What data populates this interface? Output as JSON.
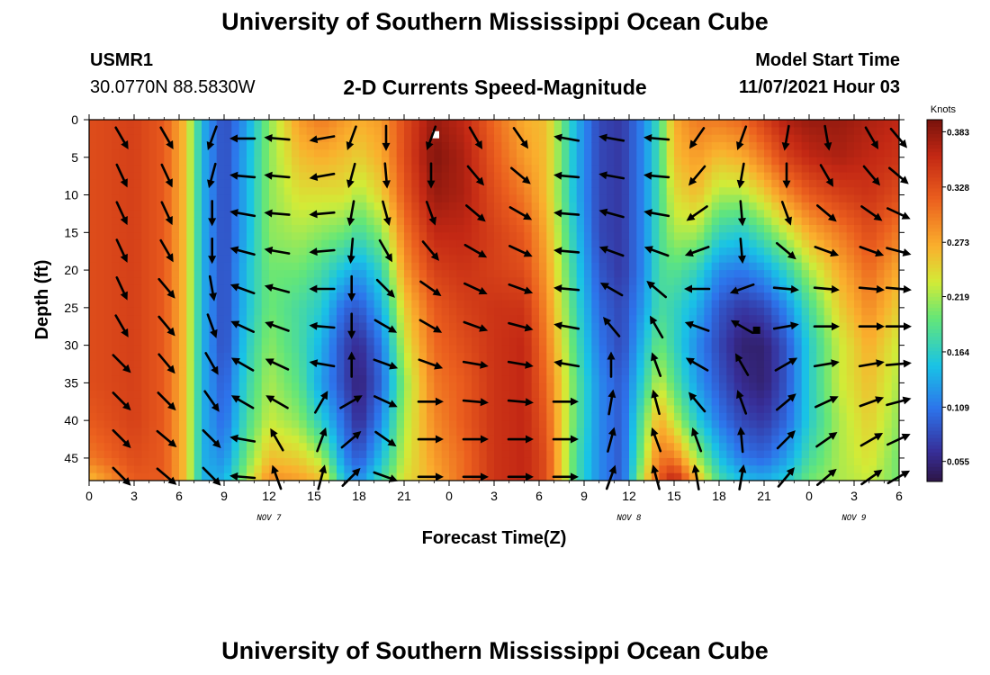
{
  "header": {
    "title": "University of Southern Mississippi Ocean Cube",
    "station_id": "USMR1",
    "station_coords": "30.0770N  88.5830W",
    "subtitle": "2-D Currents Speed-Magnitude",
    "model_start_label": "Model Start Time",
    "model_start_value": "11/07/2021 Hour 03"
  },
  "footer": {
    "title": "University of Southern Mississippi Ocean Cube"
  },
  "chart_data": {
    "type": "heatmap",
    "xlabel": "Forecast Time(Z)",
    "ylabel": "Depth (ft)",
    "x_range_hours": [
      0,
      54
    ],
    "y_range": [
      0,
      48
    ],
    "x_tick_labels": [
      "0",
      "3",
      "6",
      "9",
      "12",
      "15",
      "18",
      "21",
      "0",
      "3",
      "6",
      "9",
      "12",
      "15",
      "18",
      "21",
      "0",
      "3",
      "6"
    ],
    "y_ticks": [
      0,
      5,
      10,
      15,
      20,
      25,
      30,
      35,
      40,
      45
    ],
    "date_labels": [
      {
        "text": "NOV 7",
        "hour": 12
      },
      {
        "text": "NOV 8",
        "hour": 36
      },
      {
        "text": "NOV 9",
        "hour": 51
      }
    ],
    "colorbar": {
      "title": "Knots",
      "min": 0.035,
      "max": 0.395,
      "labels": [
        "0.383",
        "0.328",
        "0.273",
        "0.219",
        "0.164",
        "0.109",
        "0.055"
      ]
    },
    "markers": [
      {
        "hour": 23.1,
        "depth": 2,
        "color": "#ffffff"
      },
      {
        "hour": 44.5,
        "depth": 28,
        "color": "#000000"
      }
    ],
    "speed_columns": [
      {
        "hour": 0.0,
        "values": [
          0.33,
          0.33,
          0.33,
          0.33,
          0.33,
          0.33,
          0.33,
          0.33,
          0.32,
          0.3,
          0.26
        ]
      },
      {
        "hour": 3.0,
        "values": [
          0.34,
          0.34,
          0.34,
          0.34,
          0.34,
          0.34,
          0.34,
          0.34,
          0.34,
          0.33,
          0.32
        ]
      },
      {
        "hour": 5.0,
        "values": [
          0.32,
          0.32,
          0.32,
          0.32,
          0.32,
          0.32,
          0.32,
          0.32,
          0.32,
          0.32,
          0.32
        ]
      },
      {
        "hour": 6.4,
        "values": [
          0.26,
          0.26,
          0.26,
          0.26,
          0.26,
          0.26,
          0.26,
          0.26,
          0.26,
          0.26,
          0.26
        ]
      },
      {
        "hour": 7.0,
        "values": [
          0.2,
          0.2,
          0.2,
          0.2,
          0.2,
          0.2,
          0.2,
          0.2,
          0.2,
          0.2,
          0.2
        ]
      },
      {
        "hour": 7.6,
        "values": [
          0.14,
          0.14,
          0.14,
          0.14,
          0.14,
          0.14,
          0.14,
          0.14,
          0.14,
          0.14,
          0.14
        ]
      },
      {
        "hour": 9.0,
        "values": [
          0.08,
          0.08,
          0.08,
          0.08,
          0.08,
          0.08,
          0.08,
          0.09,
          0.1,
          0.12,
          0.14
        ]
      },
      {
        "hour": 10.5,
        "values": [
          0.13,
          0.14,
          0.14,
          0.14,
          0.15,
          0.15,
          0.16,
          0.17,
          0.18,
          0.2,
          0.22
        ]
      },
      {
        "hour": 12.0,
        "values": [
          0.21,
          0.21,
          0.21,
          0.21,
          0.2,
          0.2,
          0.21,
          0.22,
          0.23,
          0.26,
          0.29
        ]
      },
      {
        "hour": 14.0,
        "values": [
          0.28,
          0.26,
          0.24,
          0.22,
          0.2,
          0.18,
          0.18,
          0.19,
          0.21,
          0.25,
          0.28
        ]
      },
      {
        "hour": 15.5,
        "values": [
          0.3,
          0.27,
          0.24,
          0.21,
          0.18,
          0.16,
          0.14,
          0.13,
          0.16,
          0.22,
          0.26
        ]
      },
      {
        "hour": 17.0,
        "values": [
          0.28,
          0.26,
          0.24,
          0.2,
          0.15,
          0.1,
          0.08,
          0.08,
          0.1,
          0.12,
          0.15
        ]
      },
      {
        "hour": 18.0,
        "values": [
          0.27,
          0.25,
          0.22,
          0.18,
          0.13,
          0.09,
          0.06,
          0.05,
          0.06,
          0.09,
          0.12
        ]
      },
      {
        "hour": 19.5,
        "values": [
          0.28,
          0.27,
          0.25,
          0.21,
          0.17,
          0.14,
          0.11,
          0.1,
          0.12,
          0.15,
          0.18
        ]
      },
      {
        "hour": 21.0,
        "values": [
          0.33,
          0.33,
          0.32,
          0.3,
          0.28,
          0.25,
          0.23,
          0.21,
          0.22,
          0.23,
          0.24
        ]
      },
      {
        "hour": 23.0,
        "values": [
          0.38,
          0.39,
          0.38,
          0.36,
          0.34,
          0.32,
          0.31,
          0.3,
          0.29,
          0.28,
          0.27
        ]
      },
      {
        "hour": 25.0,
        "values": [
          0.36,
          0.37,
          0.37,
          0.36,
          0.35,
          0.34,
          0.33,
          0.32,
          0.32,
          0.31,
          0.31
        ]
      },
      {
        "hour": 27.0,
        "values": [
          0.31,
          0.32,
          0.33,
          0.34,
          0.34,
          0.35,
          0.35,
          0.35,
          0.35,
          0.35,
          0.35
        ]
      },
      {
        "hour": 29.0,
        "values": [
          0.27,
          0.28,
          0.3,
          0.32,
          0.33,
          0.35,
          0.36,
          0.36,
          0.36,
          0.36,
          0.36
        ]
      },
      {
        "hour": 30.5,
        "values": [
          0.26,
          0.26,
          0.26,
          0.27,
          0.28,
          0.29,
          0.3,
          0.31,
          0.32,
          0.33,
          0.33
        ]
      },
      {
        "hour": 31.5,
        "values": [
          0.2,
          0.2,
          0.2,
          0.21,
          0.22,
          0.23,
          0.24,
          0.25,
          0.25,
          0.25,
          0.25
        ]
      },
      {
        "hour": 32.5,
        "values": [
          0.14,
          0.14,
          0.14,
          0.15,
          0.16,
          0.17,
          0.18,
          0.19,
          0.19,
          0.18,
          0.18
        ]
      },
      {
        "hour": 34.0,
        "values": [
          0.08,
          0.08,
          0.08,
          0.08,
          0.09,
          0.1,
          0.11,
          0.12,
          0.12,
          0.12,
          0.12
        ]
      },
      {
        "hour": 35.5,
        "values": [
          0.07,
          0.07,
          0.07,
          0.07,
          0.07,
          0.08,
          0.08,
          0.09,
          0.09,
          0.09,
          0.09
        ]
      },
      {
        "hour": 37.0,
        "values": [
          0.12,
          0.12,
          0.12,
          0.12,
          0.12,
          0.13,
          0.15,
          0.17,
          0.2,
          0.22,
          0.24
        ]
      },
      {
        "hour": 38.0,
        "values": [
          0.18,
          0.18,
          0.18,
          0.18,
          0.18,
          0.18,
          0.2,
          0.23,
          0.27,
          0.3,
          0.32
        ]
      },
      {
        "hour": 39.0,
        "values": [
          0.27,
          0.26,
          0.24,
          0.22,
          0.19,
          0.17,
          0.17,
          0.19,
          0.23,
          0.3,
          0.37
        ]
      },
      {
        "hour": 40.5,
        "values": [
          0.3,
          0.28,
          0.26,
          0.22,
          0.17,
          0.14,
          0.12,
          0.13,
          0.16,
          0.22,
          0.27
        ]
      },
      {
        "hour": 42.0,
        "values": [
          0.3,
          0.26,
          0.22,
          0.17,
          0.12,
          0.09,
          0.08,
          0.09,
          0.11,
          0.15,
          0.18
        ]
      },
      {
        "hour": 43.5,
        "values": [
          0.31,
          0.27,
          0.22,
          0.16,
          0.11,
          0.07,
          0.05,
          0.06,
          0.08,
          0.11,
          0.15
        ]
      },
      {
        "hour": 45.0,
        "values": [
          0.34,
          0.3,
          0.25,
          0.19,
          0.13,
          0.08,
          0.05,
          0.05,
          0.07,
          0.1,
          0.14
        ]
      },
      {
        "hour": 46.5,
        "values": [
          0.37,
          0.34,
          0.29,
          0.23,
          0.17,
          0.12,
          0.09,
          0.09,
          0.1,
          0.13,
          0.16
        ]
      },
      {
        "hour": 48.0,
        "values": [
          0.38,
          0.36,
          0.32,
          0.27,
          0.22,
          0.18,
          0.16,
          0.16,
          0.16,
          0.18,
          0.2
        ]
      },
      {
        "hour": 50.0,
        "values": [
          0.38,
          0.37,
          0.34,
          0.3,
          0.27,
          0.25,
          0.23,
          0.23,
          0.22,
          0.22,
          0.22
        ]
      },
      {
        "hour": 52.0,
        "values": [
          0.37,
          0.36,
          0.35,
          0.33,
          0.31,
          0.29,
          0.27,
          0.26,
          0.25,
          0.24,
          0.23
        ]
      },
      {
        "hour": 54.0,
        "values": [
          0.36,
          0.35,
          0.33,
          0.3,
          0.27,
          0.25,
          0.23,
          0.22,
          0.21,
          0.2,
          0.2
        ]
      }
    ],
    "speed_depths": [
      0,
      5,
      10,
      15,
      20,
      25,
      30,
      35,
      40,
      45,
      48
    ],
    "vector_depths": [
      2.5,
      7.5,
      12.5,
      17.5,
      22.5,
      27.5,
      32.5,
      37.5,
      42.5,
      47.5
    ],
    "vector_columns": [
      {
        "hour": 2.2,
        "angles": [
          150,
          155,
          155,
          155,
          155,
          150,
          135,
          135,
          135,
          135
        ]
      },
      {
        "hour": 5.2,
        "angles": [
          150,
          155,
          155,
          150,
          140,
          140,
          140,
          135,
          130,
          130
        ]
      },
      {
        "hour": 8.2,
        "angles": [
          200,
          195,
          180,
          180,
          170,
          160,
          150,
          145,
          135,
          135
        ]
      },
      {
        "hour": 10.2,
        "angles": [
          270,
          275,
          280,
          285,
          290,
          295,
          300,
          300,
          280,
          275
        ]
      },
      {
        "hour": 12.5,
        "angles": [
          275,
          275,
          275,
          280,
          285,
          290,
          295,
          300,
          330,
          340
        ]
      },
      {
        "hour": 15.5,
        "angles": [
          260,
          260,
          265,
          265,
          270,
          275,
          280,
          30,
          20,
          15
        ]
      },
      {
        "hour": 17.5,
        "angles": [
          200,
          195,
          190,
          185,
          180,
          180,
          0,
          60,
          50,
          45
        ]
      },
      {
        "hour": 19.8,
        "angles": [
          180,
          175,
          165,
          150,
          135,
          120,
          110,
          115,
          125,
          110
        ]
      },
      {
        "hour": 22.8,
        "angles": [
          200,
          180,
          160,
          140,
          125,
          120,
          110,
          90,
          90,
          90
        ]
      },
      {
        "hour": 25.8,
        "angles": [
          150,
          140,
          130,
          120,
          115,
          110,
          100,
          95,
          90,
          90
        ]
      },
      {
        "hour": 28.8,
        "angles": [
          145,
          130,
          120,
          115,
          110,
          105,
          100,
          95,
          90,
          90
        ]
      },
      {
        "hour": 31.8,
        "angles": [
          280,
          275,
          275,
          275,
          275,
          280,
          280,
          90,
          90,
          90
        ]
      },
      {
        "hour": 34.8,
        "angles": [
          280,
          280,
          285,
          290,
          300,
          320,
          0,
          10,
          15,
          20
        ]
      },
      {
        "hour": 37.8,
        "angles": [
          275,
          275,
          280,
          290,
          310,
          330,
          340,
          345,
          340,
          345
        ]
      },
      {
        "hour": 40.5,
        "angles": [
          215,
          220,
          235,
          250,
          270,
          290,
          300,
          320,
          340,
          350
        ]
      },
      {
        "hour": 43.5,
        "angles": [
          200,
          190,
          175,
          175,
          250,
          300,
          330,
          340,
          355,
          10
        ]
      },
      {
        "hour": 46.5,
        "angles": [
          190,
          180,
          160,
          130,
          95,
          80,
          60,
          50,
          45,
          40
        ]
      },
      {
        "hour": 49.2,
        "angles": [
          170,
          150,
          130,
          110,
          95,
          90,
          80,
          65,
          55,
          50
        ]
      },
      {
        "hour": 52.2,
        "angles": [
          150,
          140,
          125,
          110,
          95,
          90,
          80,
          70,
          60,
          55
        ]
      },
      {
        "hour": 54.0,
        "angles": [
          140,
          130,
          115,
          105,
          95,
          90,
          85,
          75,
          65,
          60
        ]
      }
    ]
  }
}
